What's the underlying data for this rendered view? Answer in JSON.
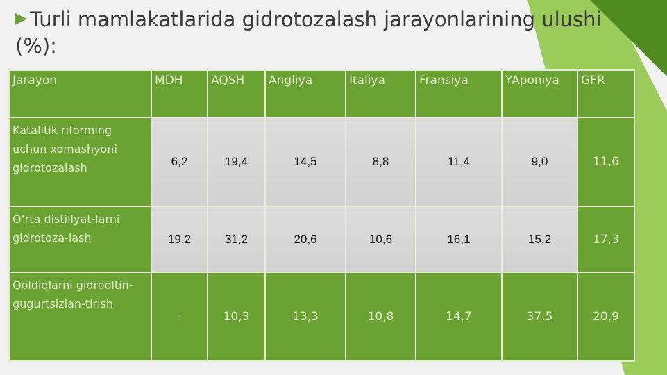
{
  "title": "Turli mamlakatlarida gidrotozalash jarayonlarining ulushi (%):",
  "table": {
    "header": [
      "Jarayon",
      "MDH",
      "AQSH",
      "Angliya",
      "Italiya",
      "Fransiya",
      "YAponiya",
      "GFR"
    ],
    "rows": [
      [
        "Katalitik riforming uchun xomashyoni gidrotozalash",
        "6,2",
        "19,4",
        "14,5",
        "8,8",
        "11,4",
        "9,0",
        "11,6"
      ],
      [
        "O‘rta distillyat-larni gidrotoza-lash",
        "19,2",
        "31,2",
        "20,6",
        "10,6",
        "16,1",
        "15,2",
        "17,3"
      ],
      [
        "Qoldiqlarni gidrooltin-gugurtsizlan-tirish",
        "-",
        "10,3",
        "13,3",
        "10,8",
        "14,7",
        "37,5",
        "20,9"
      ]
    ]
  }
}
